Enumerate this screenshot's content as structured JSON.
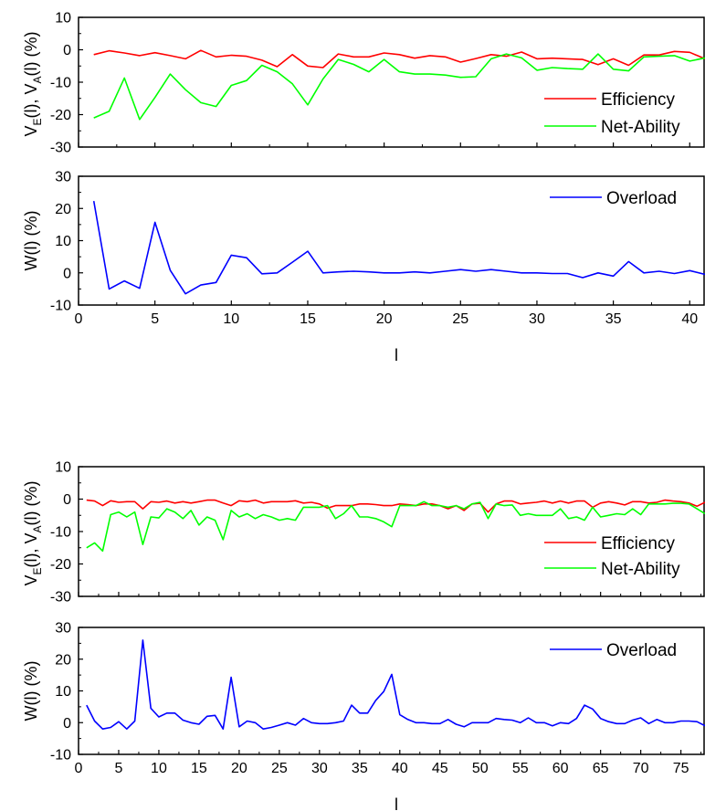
{
  "chart_data": [
    {
      "type": "line",
      "ylabel_main": "V",
      "ylabel_sub1": "E",
      "ylabel_mid": "(l), V",
      "ylabel_sub2": "A",
      "ylabel_end": "(l) (%)",
      "xlim": [
        0,
        41
      ],
      "ylim": [
        -30,
        10
      ],
      "yticks": [
        -30,
        -20,
        -10,
        0,
        10
      ],
      "legend_position": "right",
      "series": [
        {
          "name": "Efficiency",
          "color": "#ff0000",
          "x": [
            1,
            2,
            3,
            4,
            5,
            6,
            7,
            8,
            9,
            10,
            11,
            12,
            13,
            14,
            15,
            16,
            17,
            18,
            19,
            20,
            21,
            22,
            23,
            24,
            25,
            26,
            27,
            28,
            29,
            30,
            31,
            32,
            33,
            34,
            35,
            36,
            37,
            38,
            39,
            40,
            41
          ],
          "y": [
            -1.5,
            -0.3,
            -1.0,
            -1.8,
            -0.9,
            -1.8,
            -2.8,
            -0.2,
            -2.2,
            -1.7,
            -2.0,
            -3.2,
            -5.2,
            -1.5,
            -5.0,
            -5.5,
            -1.3,
            -2.2,
            -2.2,
            -1.0,
            -1.5,
            -2.6,
            -1.8,
            -2.2,
            -3.8,
            -2.7,
            -1.5,
            -2.0,
            -0.7,
            -2.8,
            -2.6,
            -2.8,
            -3.0,
            -4.6,
            -2.8,
            -4.8,
            -1.6,
            -1.6,
            -0.5,
            -0.8,
            -2.8
          ]
        },
        {
          "name": "Net-Ability",
          "color": "#00ff00",
          "x": [
            1,
            2,
            3,
            4,
            5,
            6,
            7,
            8,
            9,
            10,
            11,
            12,
            13,
            14,
            15,
            16,
            17,
            18,
            19,
            20,
            21,
            22,
            23,
            24,
            25,
            26,
            27,
            28,
            29,
            30,
            31,
            32,
            33,
            34,
            35,
            36,
            37,
            38,
            39,
            40,
            41
          ],
          "y": [
            -21.0,
            -19.0,
            -8.7,
            -21.5,
            -14.7,
            -7.5,
            -12.3,
            -16.3,
            -17.5,
            -11.0,
            -9.5,
            -4.8,
            -6.8,
            -10.5,
            -17.0,
            -9.0,
            -3.0,
            -4.5,
            -6.8,
            -3.0,
            -6.8,
            -7.5,
            -7.5,
            -7.8,
            -8.5,
            -8.3,
            -2.8,
            -1.3,
            -2.5,
            -6.3,
            -5.5,
            -5.8,
            -6.0,
            -1.3,
            -6.0,
            -6.5,
            -2.2,
            -2.0,
            -1.8,
            -3.5,
            -2.5
          ]
        }
      ]
    },
    {
      "type": "line",
      "xlabel": "l",
      "ylabel": "W(l) (%)",
      "xlim": [
        0,
        41
      ],
      "ylim": [
        -10,
        30
      ],
      "xticks": [
        0,
        5,
        10,
        15,
        20,
        25,
        30,
        35,
        40
      ],
      "yticks": [
        -10,
        0,
        10,
        20,
        30
      ],
      "legend_position": "top-right",
      "series": [
        {
          "name": "Overload",
          "color": "#0000ff",
          "x": [
            1,
            2,
            3,
            4,
            5,
            6,
            7,
            8,
            9,
            10,
            11,
            12,
            13,
            14,
            15,
            16,
            17,
            18,
            19,
            20,
            21,
            22,
            23,
            24,
            25,
            26,
            27,
            28,
            29,
            30,
            31,
            32,
            33,
            34,
            35,
            36,
            37,
            38,
            39,
            40,
            41
          ],
          "y": [
            22.3,
            -5.0,
            -2.5,
            -4.8,
            15.7,
            0.8,
            -6.5,
            -3.8,
            -3.0,
            5.5,
            4.7,
            -0.3,
            0.0,
            3.3,
            6.7,
            0.0,
            0.3,
            0.5,
            0.3,
            0.0,
            0.0,
            0.3,
            0.0,
            0.5,
            1.0,
            0.5,
            1.0,
            0.5,
            0.0,
            0.0,
            -0.2,
            -0.2,
            -1.5,
            0.0,
            -1.0,
            3.5,
            0.0,
            0.5,
            -0.2,
            0.7,
            -0.5
          ]
        }
      ]
    },
    {
      "type": "line",
      "ylabel_main": "V",
      "ylabel_sub1": "E",
      "ylabel_mid": "(l), V",
      "ylabel_sub2": "A",
      "ylabel_end": "(l) (%)",
      "xlim": [
        0,
        78
      ],
      "ylim": [
        -30,
        10
      ],
      "yticks": [
        -30,
        -20,
        -10,
        0,
        10
      ],
      "legend_position": "right",
      "series": [
        {
          "name": "Efficiency",
          "color": "#ff0000",
          "x": [
            1,
            2,
            3,
            4,
            5,
            6,
            7,
            8,
            9,
            10,
            11,
            12,
            13,
            14,
            15,
            16,
            17,
            18,
            19,
            20,
            21,
            22,
            23,
            24,
            25,
            26,
            27,
            28,
            29,
            30,
            31,
            32,
            33,
            34,
            35,
            36,
            37,
            38,
            39,
            40,
            41,
            42,
            43,
            44,
            45,
            46,
            47,
            48,
            49,
            50,
            51,
            52,
            53,
            54,
            55,
            56,
            57,
            58,
            59,
            60,
            61,
            62,
            63,
            64,
            65,
            66,
            67,
            68,
            69,
            70,
            71,
            72,
            73,
            74,
            75,
            76,
            77,
            78
          ],
          "y": [
            -0.3,
            -0.6,
            -2.0,
            -0.5,
            -1.0,
            -0.8,
            -0.8,
            -3.0,
            -0.8,
            -1.0,
            -0.6,
            -1.2,
            -0.8,
            -1.2,
            -0.8,
            -0.3,
            -0.3,
            -1.2,
            -2.0,
            -0.5,
            -0.8,
            -0.3,
            -1.2,
            -0.8,
            -0.8,
            -0.8,
            -0.5,
            -1.2,
            -1.0,
            -1.5,
            -2.8,
            -2.0,
            -2.0,
            -2.0,
            -1.5,
            -1.5,
            -1.7,
            -2.0,
            -2.0,
            -1.5,
            -1.7,
            -2.0,
            -1.5,
            -1.5,
            -2.0,
            -3.0,
            -2.0,
            -3.5,
            -1.5,
            -1.3,
            -4.0,
            -1.5,
            -0.6,
            -0.6,
            -1.5,
            -1.2,
            -1.0,
            -0.6,
            -1.2,
            -0.6,
            -1.2,
            -0.6,
            -0.6,
            -2.5,
            -1.2,
            -0.8,
            -1.2,
            -1.8,
            -0.8,
            -0.8,
            -1.2,
            -1.0,
            -0.3,
            -0.6,
            -0.8,
            -1.2,
            -2.2,
            -1.0
          ]
        },
        {
          "name": "Net-Ability",
          "color": "#00ff00",
          "x": [
            1,
            2,
            3,
            4,
            5,
            6,
            7,
            8,
            9,
            10,
            11,
            12,
            13,
            14,
            15,
            16,
            17,
            18,
            19,
            20,
            21,
            22,
            23,
            24,
            25,
            26,
            27,
            28,
            29,
            30,
            31,
            32,
            33,
            34,
            35,
            36,
            37,
            38,
            39,
            40,
            41,
            42,
            43,
            44,
            45,
            46,
            47,
            48,
            49,
            50,
            51,
            52,
            53,
            54,
            55,
            56,
            57,
            58,
            59,
            60,
            61,
            62,
            63,
            64,
            65,
            66,
            67,
            68,
            69,
            70,
            71,
            72,
            73,
            74,
            75,
            76,
            77,
            78
          ],
          "y": [
            -15.0,
            -13.5,
            -16.0,
            -4.8,
            -4.0,
            -5.5,
            -4.0,
            -14.0,
            -5.5,
            -5.8,
            -3.0,
            -4.0,
            -6.0,
            -3.5,
            -8.0,
            -5.5,
            -6.5,
            -12.5,
            -3.5,
            -5.5,
            -4.5,
            -6.0,
            -4.8,
            -5.5,
            -6.5,
            -6.0,
            -6.5,
            -2.5,
            -2.5,
            -2.5,
            -2.0,
            -6.0,
            -4.5,
            -2.0,
            -5.5,
            -5.5,
            -6.0,
            -7.0,
            -8.5,
            -2.0,
            -2.0,
            -2.0,
            -0.8,
            -2.0,
            -2.0,
            -2.5,
            -2.0,
            -3.0,
            -1.5,
            -1.0,
            -6.0,
            -1.5,
            -2.0,
            -1.8,
            -5.0,
            -4.5,
            -5.0,
            -5.0,
            -5.0,
            -3.0,
            -6.0,
            -5.5,
            -6.5,
            -2.5,
            -5.5,
            -5.0,
            -4.5,
            -4.8,
            -3.0,
            -4.8,
            -1.5,
            -1.5,
            -1.5,
            -1.3,
            -1.3,
            -1.5,
            -3.0,
            -4.5
          ]
        }
      ]
    },
    {
      "type": "line",
      "xlabel": "l",
      "ylabel": "W(l) (%)",
      "xlim": [
        0,
        78
      ],
      "ylim": [
        -10,
        30
      ],
      "xticks": [
        0,
        5,
        10,
        15,
        20,
        25,
        30,
        35,
        40,
        45,
        50,
        55,
        60,
        65,
        70,
        75
      ],
      "yticks": [
        -10,
        0,
        10,
        20,
        30
      ],
      "legend_position": "top-right",
      "series": [
        {
          "name": "Overload",
          "color": "#0000ff",
          "x": [
            1,
            2,
            3,
            4,
            5,
            6,
            7,
            8,
            9,
            10,
            11,
            12,
            13,
            14,
            15,
            16,
            17,
            18,
            19,
            20,
            21,
            22,
            23,
            24,
            25,
            26,
            27,
            28,
            29,
            30,
            31,
            32,
            33,
            34,
            35,
            36,
            37,
            38,
            39,
            40,
            41,
            42,
            43,
            44,
            45,
            46,
            47,
            48,
            49,
            50,
            51,
            52,
            53,
            54,
            55,
            56,
            57,
            58,
            59,
            60,
            61,
            62,
            63,
            64,
            65,
            66,
            67,
            68,
            69,
            70,
            71,
            72,
            73,
            74,
            75,
            76,
            77,
            78
          ],
          "y": [
            5.5,
            0.5,
            -2.0,
            -1.5,
            0.3,
            -2.0,
            0.5,
            26.0,
            4.5,
            1.8,
            3.0,
            3.0,
            0.8,
            0.0,
            -0.5,
            2.0,
            2.3,
            -2.0,
            14.3,
            -1.3,
            0.5,
            0.0,
            -2.0,
            -1.5,
            -0.8,
            0.0,
            -0.8,
            1.3,
            0.0,
            -0.3,
            -0.3,
            0.0,
            0.5,
            5.5,
            3.0,
            3.0,
            7.0,
            9.8,
            15.2,
            2.5,
            1.0,
            0.0,
            0.0,
            -0.3,
            -0.3,
            1.0,
            -0.5,
            -1.3,
            0.0,
            0.0,
            0.0,
            1.3,
            1.0,
            0.8,
            0.0,
            1.5,
            0.0,
            0.0,
            -1.0,
            0.0,
            -0.3,
            1.3,
            5.5,
            4.3,
            1.3,
            0.3,
            -0.3,
            -0.3,
            0.8,
            1.5,
            -0.3,
            1.0,
            0.0,
            0.0,
            0.5,
            0.5,
            0.3,
            -1.0
          ]
        }
      ]
    }
  ]
}
